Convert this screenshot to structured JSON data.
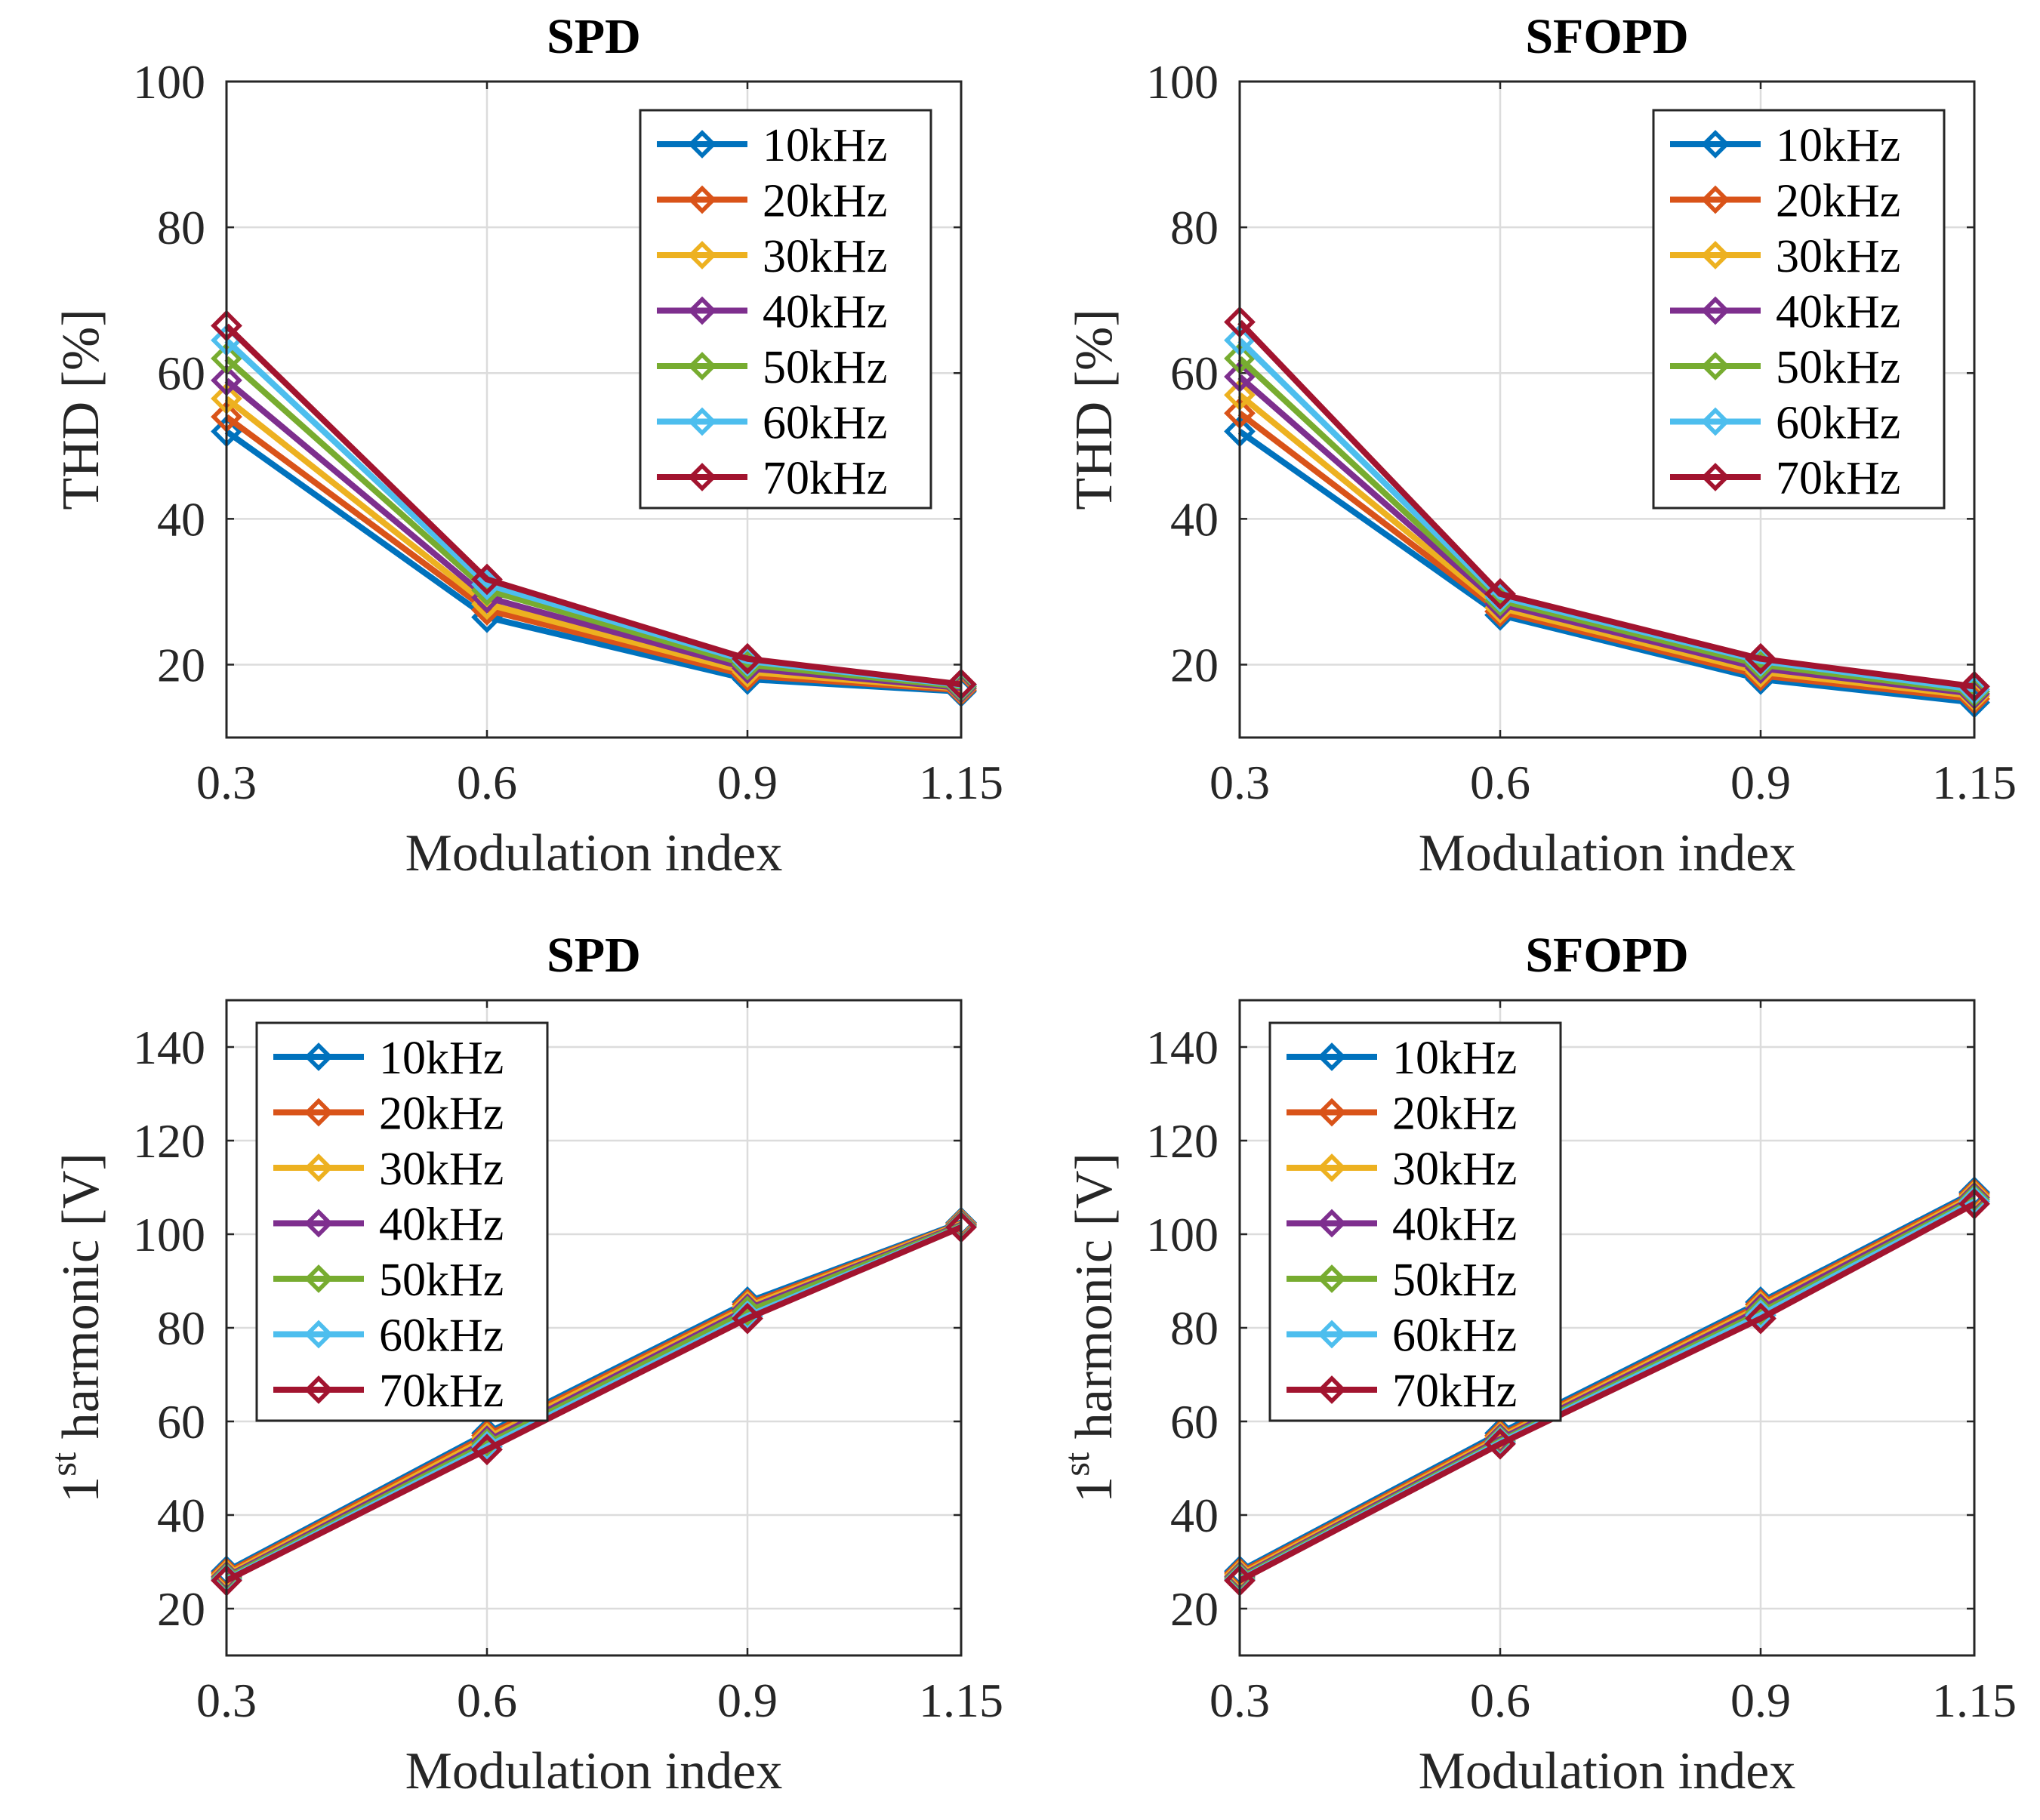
{
  "colors": {
    "10kHz": "#0072BD",
    "20kHz": "#D95319",
    "30kHz": "#EDB120",
    "40kHz": "#7E2F8E",
    "50kHz": "#77AC30",
    "60kHz": "#4DBEEE",
    "70kHz": "#A2142F"
  },
  "chart_data": [
    {
      "type": "line",
      "title": "SPD",
      "xlabel": "Modulation index",
      "ylabel": "THD [%]",
      "x_ticks": [
        "0.3",
        "0.6",
        "0.9",
        "1.15"
      ],
      "y_ticks": [
        20,
        40,
        60,
        80,
        100
      ],
      "ylim": [
        10,
        100
      ],
      "grid": true,
      "legend_position": "top-right",
      "series": [
        {
          "name": "10kHz",
          "values": [
            52,
            26.5,
            18,
            16.3
          ]
        },
        {
          "name": "20kHz",
          "values": [
            54,
            27.5,
            18.5,
            16.5
          ]
        },
        {
          "name": "30kHz",
          "values": [
            56.5,
            28.3,
            19,
            16.7
          ]
        },
        {
          "name": "40kHz",
          "values": [
            59,
            29.2,
            19.5,
            16.8
          ]
        },
        {
          "name": "50kHz",
          "values": [
            62,
            30.2,
            20,
            17
          ]
        },
        {
          "name": "60kHz",
          "values": [
            64.5,
            31,
            20.5,
            17.2
          ]
        },
        {
          "name": "70kHz",
          "values": [
            66.5,
            31.7,
            20.8,
            17.3
          ]
        }
      ]
    },
    {
      "type": "line",
      "title": "SFOPD",
      "xlabel": "Modulation index",
      "ylabel": "THD [%]",
      "x_ticks": [
        "0.3",
        "0.6",
        "0.9",
        "1.15"
      ],
      "y_ticks": [
        20,
        40,
        60,
        80,
        100
      ],
      "ylim": [
        10,
        100
      ],
      "grid": true,
      "legend_position": "top-right",
      "series": [
        {
          "name": "10kHz",
          "values": [
            52,
            26.8,
            18,
            14.8
          ]
        },
        {
          "name": "20kHz",
          "values": [
            54.5,
            27.3,
            18.5,
            15.3
          ]
        },
        {
          "name": "30kHz",
          "values": [
            57,
            27.8,
            19,
            15.7
          ]
        },
        {
          "name": "40kHz",
          "values": [
            59.5,
            28.3,
            19.5,
            16
          ]
        },
        {
          "name": "50kHz",
          "values": [
            62,
            28.8,
            20,
            16.3
          ]
        },
        {
          "name": "60kHz",
          "values": [
            64.5,
            29.3,
            20.5,
            16.6
          ]
        },
        {
          "name": "70kHz",
          "values": [
            67,
            29.7,
            20.8,
            17
          ]
        }
      ]
    },
    {
      "type": "line",
      "title": "SPD",
      "xlabel": "Modulation index",
      "ylabel_base": "1",
      "ylabel_sup": "st",
      "ylabel_rest": " harmonic [V]",
      "x_ticks": [
        "0.3",
        "0.6",
        "0.9",
        "1.15"
      ],
      "y_ticks": [
        20,
        40,
        60,
        80,
        100,
        120,
        140
      ],
      "ylim": [
        10,
        150
      ],
      "grid": true,
      "legend_position": "top-left",
      "series": [
        {
          "name": "10kHz",
          "values": [
            28,
            57.5,
            85.5,
            102.5
          ]
        },
        {
          "name": "20kHz",
          "values": [
            27.6,
            57,
            85,
            102.3
          ]
        },
        {
          "name": "30kHz",
          "values": [
            27.2,
            56.4,
            84.5,
            102.2
          ]
        },
        {
          "name": "40kHz",
          "values": [
            26.8,
            55.8,
            84,
            102
          ]
        },
        {
          "name": "50kHz",
          "values": [
            26.5,
            55.2,
            83.5,
            101.8
          ]
        },
        {
          "name": "60kHz",
          "values": [
            26.2,
            54.6,
            82.5,
            101.6
          ]
        },
        {
          "name": "70kHz",
          "values": [
            26,
            54,
            82,
            101.5
          ]
        }
      ]
    },
    {
      "type": "line",
      "title": "SFOPD",
      "xlabel": "Modulation index",
      "ylabel_base": "1",
      "ylabel_sup": "st",
      "ylabel_rest": " harmonic [V]",
      "x_ticks": [
        "0.3",
        "0.6",
        "0.9",
        "1.15"
      ],
      "y_ticks": [
        20,
        40,
        60,
        80,
        100,
        120,
        140
      ],
      "ylim": [
        10,
        150
      ],
      "grid": true,
      "legend_position": "top-left",
      "series": [
        {
          "name": "10kHz",
          "values": [
            28,
            57.5,
            85.5,
            109
          ]
        },
        {
          "name": "20kHz",
          "values": [
            27.6,
            57,
            85,
            108.6
          ]
        },
        {
          "name": "30kHz",
          "values": [
            27.2,
            56.6,
            84.5,
            108.2
          ]
        },
        {
          "name": "40kHz",
          "values": [
            26.8,
            56.2,
            84,
            107.8
          ]
        },
        {
          "name": "50kHz",
          "values": [
            26.5,
            55.8,
            83.3,
            107.4
          ]
        },
        {
          "name": "60kHz",
          "values": [
            26.2,
            55.5,
            82.7,
            107
          ]
        },
        {
          "name": "70kHz",
          "values": [
            26,
            55.2,
            82,
            106.5
          ]
        }
      ]
    }
  ]
}
